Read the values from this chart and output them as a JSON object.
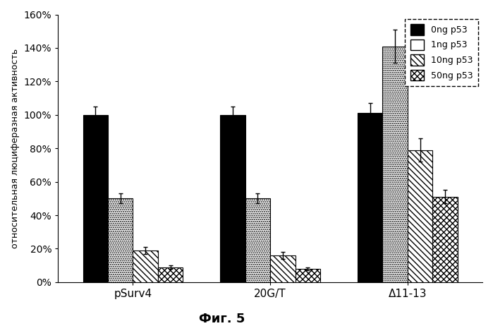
{
  "groups": [
    "pSurv4",
    "20G/T",
    "Δ11-13"
  ],
  "series_labels": [
    "0ng p53",
    "1ng p53",
    "10ng p53",
    "50ng p53"
  ],
  "values": [
    [
      100,
      100,
      101
    ],
    [
      50,
      50,
      141
    ],
    [
      19,
      16,
      79
    ],
    [
      9,
      8,
      51
    ]
  ],
  "errors": [
    [
      5,
      5,
      6
    ],
    [
      3,
      3,
      10
    ],
    [
      2,
      2,
      7
    ],
    [
      1,
      1,
      4
    ]
  ],
  "ylabel": "относительная люциферазная активность",
  "xlabel_caption": "Фиг. 5",
  "ylim": [
    0,
    160
  ],
  "yticks": [
    0,
    20,
    40,
    60,
    80,
    100,
    120,
    140,
    160
  ],
  "ytick_labels": [
    "0%",
    "20%",
    "40%",
    "60%",
    "80%",
    "100%",
    "120%",
    "140%",
    "160%"
  ],
  "bar_width": 0.2,
  "fig_width": 6.99,
  "fig_height": 4.62,
  "dpi": 100
}
